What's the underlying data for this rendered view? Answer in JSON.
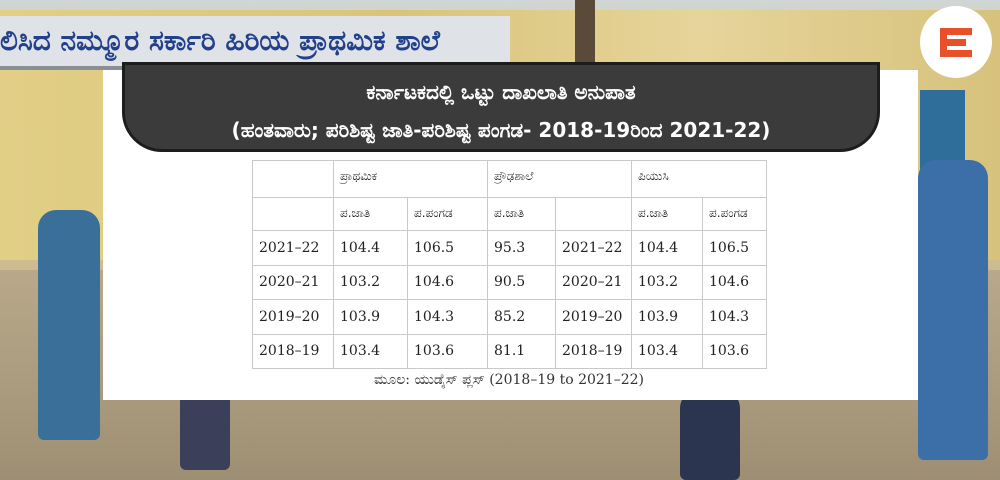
{
  "background": {
    "sign_text": "ಲಿಸಿದ ನಮ್ಮೂರ ಸರ್ಕಾರಿ ಹಿರಿಯ ಪ್ರಾಥಮಿಕ ಶಾಲೆ"
  },
  "header": {
    "title": "ಕರ್ನಾಟಕದಲ್ಲಿ ಒಟ್ಟು ದಾಖಲಾತಿ ಅನುಪಾತ",
    "subtitle": "(ಹಂತವಾರು; ಪರಿಶಿಷ್ಟ ಜಾತಿ-ಪರಿಶಿಷ್ಟ ಪಂಗಡ- 2018-19ರಿಂದ 2021-22)"
  },
  "table": {
    "group_headers": [
      "ಪ್ರಾಥಮಿಕ",
      "ಪ್ರೌಢಶಾಲೆ",
      "ಪಿಯುಸಿ"
    ],
    "sub_headers": [
      null,
      "ಪ.ಜಾತಿ",
      "ಪ.ಪಂಗಡ",
      "ಪ.ಜಾತಿ",
      null,
      "ಪ.ಜಾತಿ",
      "ಪ.ಪಂಗಡ"
    ],
    "rows": [
      [
        "2021–22",
        104.4,
        106.5,
        95.3,
        "2021–22",
        104.4,
        106.5
      ],
      [
        "2020–21",
        103.2,
        104.6,
        90.5,
        "2020–21",
        103.2,
        104.6
      ],
      [
        "2019–20",
        103.9,
        104.3,
        85.2,
        "2019–20",
        103.9,
        104.3
      ],
      [
        "2018–19",
        103.4,
        103.6,
        81.1,
        "2018–19",
        103.4,
        103.6
      ]
    ]
  },
  "source": "ಮೂಲ: ಯುಡೈಸ್ ಪ್ಲಸ್ (2018–19 to 2021–22)"
}
